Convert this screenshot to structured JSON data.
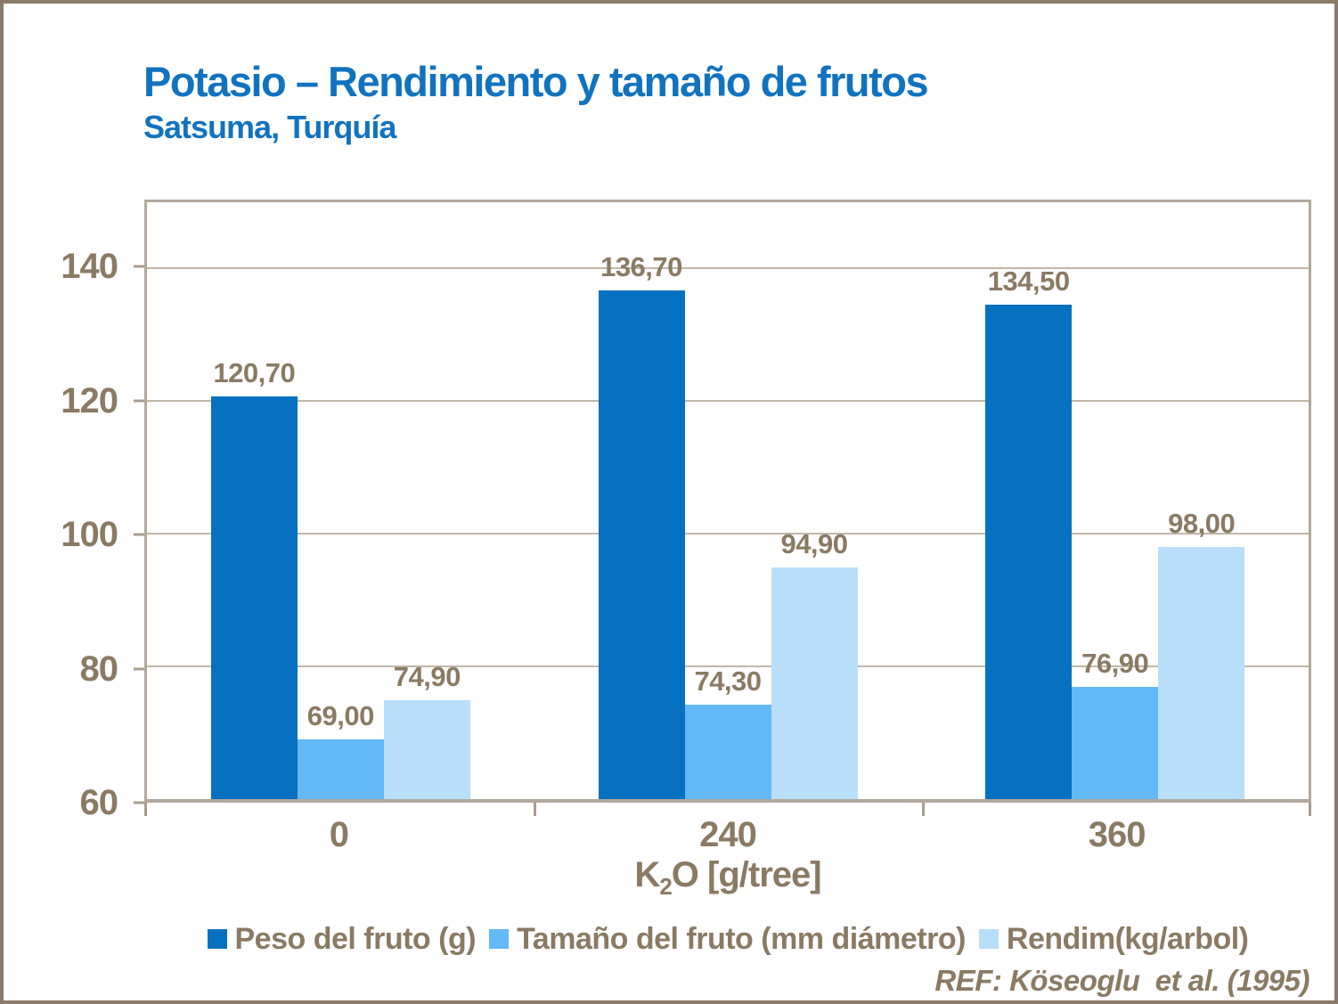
{
  "title": "Potasio – Rendimiento y tamaño de frutos",
  "subtitle": "Satsuma, Turquía",
  "reference": "REF: Köseoglu  et al. (1995)",
  "palette": {
    "title_blue": "#1173bf",
    "text_brown": "#8a7a63",
    "gridline": "#c1b6a8",
    "plot_border": "#b3a89c",
    "frame_border": "#8b7a6a"
  },
  "chart_data": {
    "type": "bar",
    "title": "Potasio – Rendimiento y tamaño de frutos",
    "subtitle": "Satsuma, Turquía",
    "categories": [
      "0",
      "240",
      "360"
    ],
    "series": [
      {
        "name": "Peso del fruto (g)",
        "color": "#0571c0",
        "values": [
          120.7,
          136.7,
          134.5
        ],
        "data_labels": [
          "120,70",
          "136,70",
          "134,50"
        ]
      },
      {
        "name": "Tamaño del fruto (mm diámetro)",
        "color": "#63b8f6",
        "values": [
          69.0,
          74.3,
          76.9
        ],
        "data_labels": [
          "69,00",
          "74,30",
          "76,90"
        ]
      },
      {
        "name": "Rendim(kg/arbol)",
        "color": "#b9defa",
        "values": [
          74.9,
          94.9,
          98.0
        ],
        "data_labels": [
          "74,90",
          "94,90",
          "98,00"
        ]
      }
    ],
    "xlabel": {
      "base": "K",
      "sub": "2",
      "rest": "O [g/tree]"
    },
    "ylabel": "",
    "ylim": [
      60,
      150
    ],
    "yticks": [
      60,
      80,
      100,
      120,
      140
    ],
    "grid": true,
    "legend_position": "bottom"
  }
}
